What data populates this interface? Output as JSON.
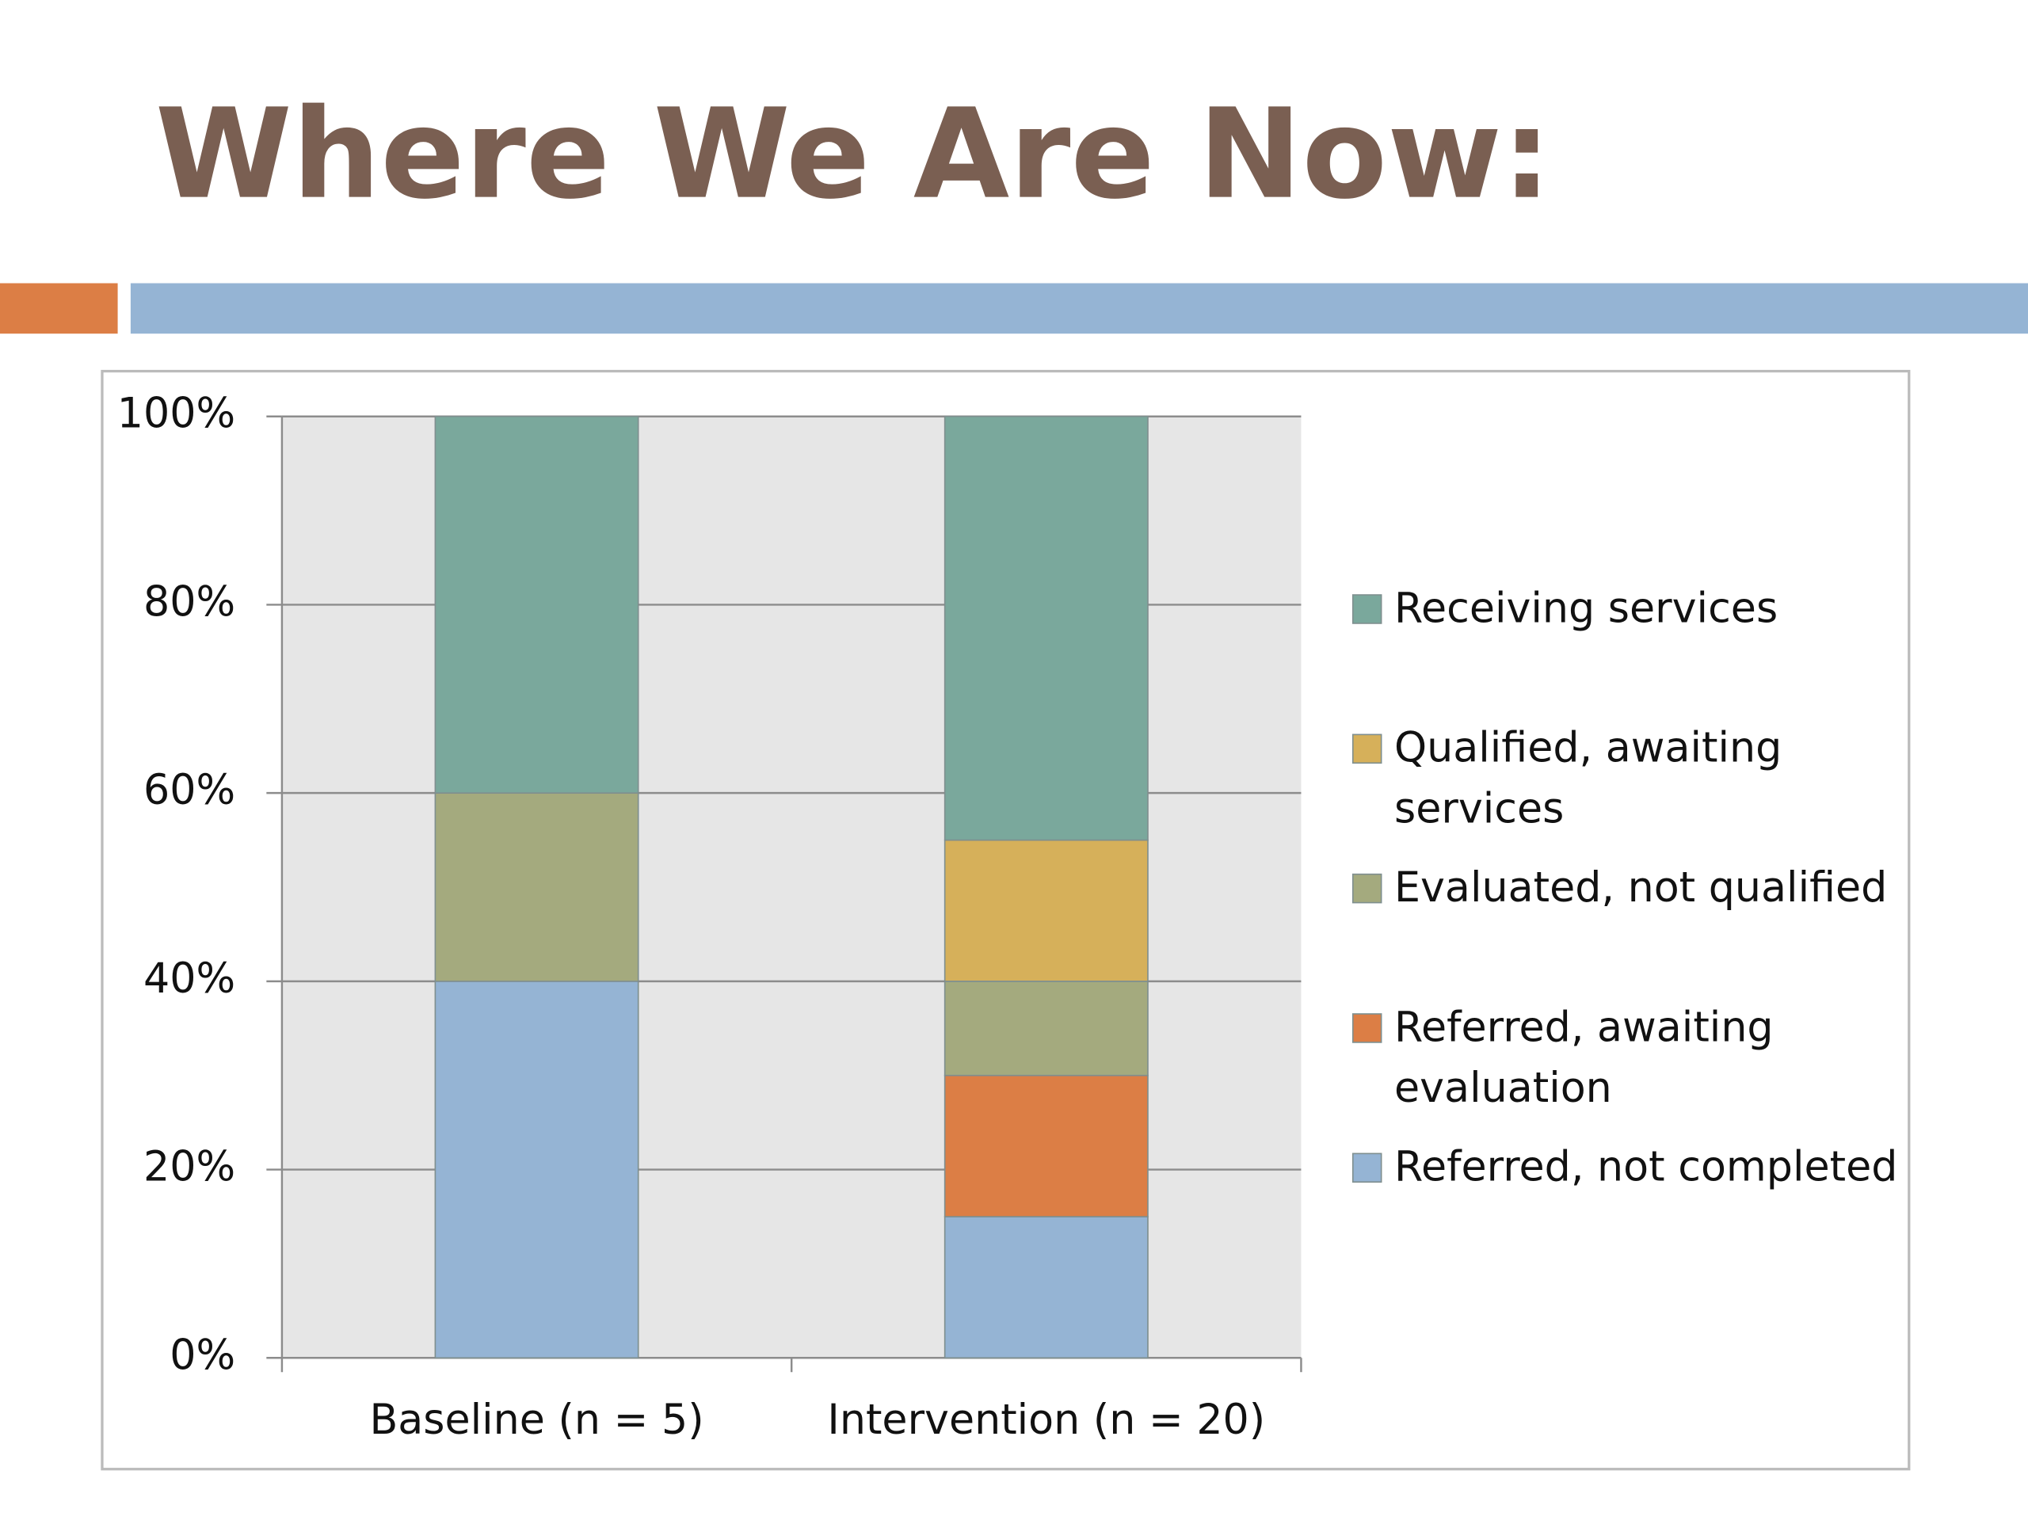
{
  "chart_data": {
    "type": "stacked_bar",
    "title": "Where We Are Now:",
    "categories": [
      "Baseline (n = 5)",
      "Intervention (n = 20)"
    ],
    "series": [
      {
        "name": "Referred, not completed",
        "color": "#95b4d4",
        "values": [
          40,
          15
        ]
      },
      {
        "name": "Referred, awaiting evaluation",
        "color": "#dc7e45",
        "values": [
          0,
          15
        ]
      },
      {
        "name": "Evaluated, not qualified",
        "color": "#a4aa7e",
        "values": [
          20,
          10
        ]
      },
      {
        "name": "Qualified, awaiting services",
        "color": "#d6b05a",
        "values": [
          0,
          15
        ]
      },
      {
        "name": "Receiving services",
        "color": "#7aa89c",
        "values": [
          40,
          45
        ]
      }
    ],
    "ylim": [
      0,
      100
    ],
    "yticks": [
      {
        "value": 0,
        "label": "0%"
      },
      {
        "value": 20,
        "label": "20%"
      },
      {
        "value": 40,
        "label": "40%"
      },
      {
        "value": 60,
        "label": "60%"
      },
      {
        "value": 80,
        "label": "80%"
      },
      {
        "value": 100,
        "label": "100%"
      }
    ],
    "grid": true,
    "legend": "right"
  }
}
